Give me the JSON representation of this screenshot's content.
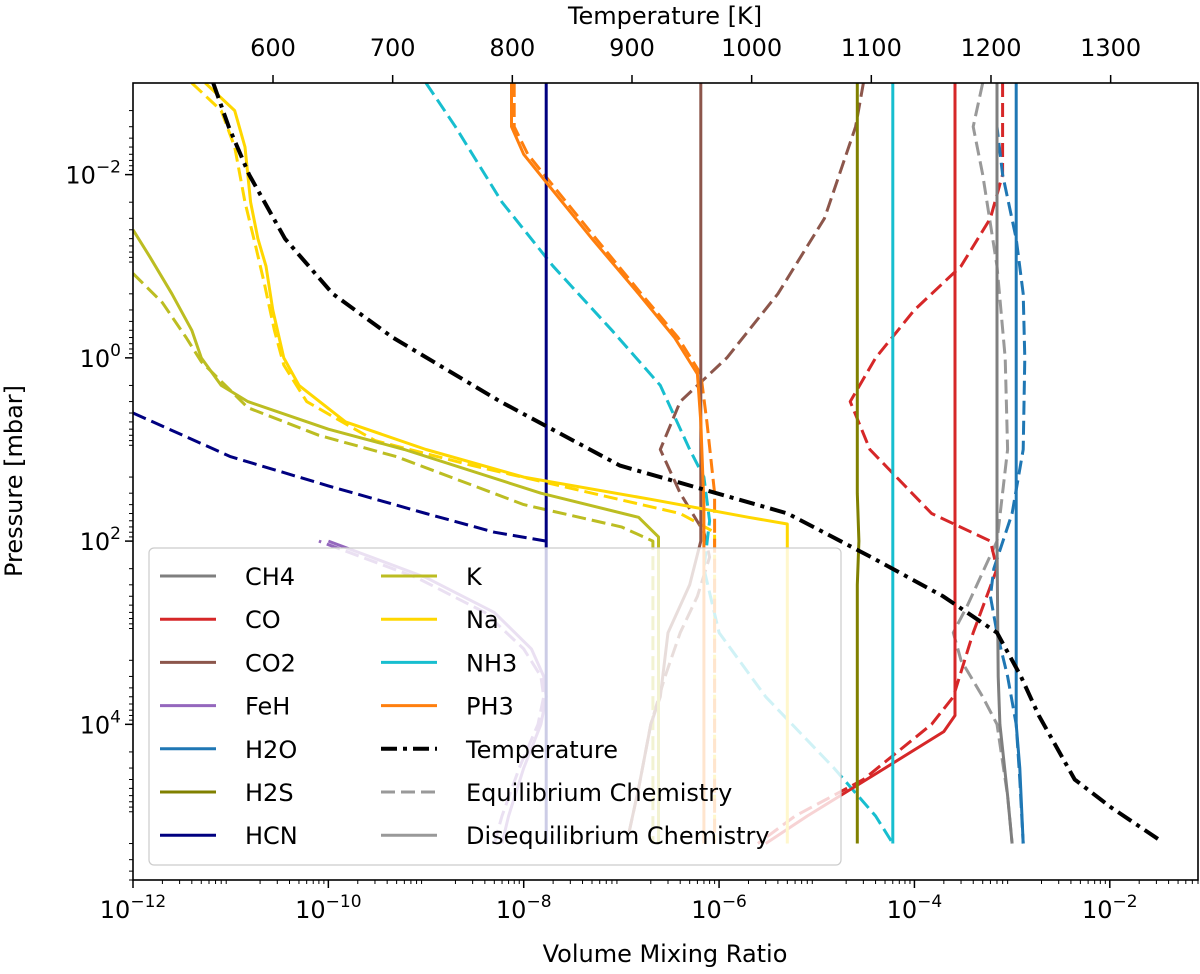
{
  "chart_data": {
    "type": "line",
    "xlabel": "Volume Mixing Ratio",
    "ylabel": "Pressure [mbar]",
    "top_xlabel": "Temperature [K]",
    "x_scale": "log",
    "y_scale": "log",
    "xlim": [
      1e-12,
      0.08
    ],
    "ylim": [
      500000.0,
      0.001
    ],
    "top_xlim": [
      483,
      1373
    ],
    "x_ticks": [
      {
        "value": 1e-12,
        "base": "10",
        "exp": "−12"
      },
      {
        "value": 1e-10,
        "base": "10",
        "exp": "−10"
      },
      {
        "value": 1e-08,
        "base": "10",
        "exp": "−8"
      },
      {
        "value": 1e-06,
        "base": "10",
        "exp": "−6"
      },
      {
        "value": 0.0001,
        "base": "10",
        "exp": "−4"
      },
      {
        "value": 0.01,
        "base": "10",
        "exp": "−2"
      }
    ],
    "y_ticks": [
      {
        "value": 0.01,
        "base": "10",
        "exp": "−2"
      },
      {
        "value": 1,
        "base": "10",
        "exp": "0"
      },
      {
        "value": 100,
        "base": "10",
        "exp": "2"
      },
      {
        "value": 10000,
        "base": "10",
        "exp": "4"
      }
    ],
    "top_ticks": [
      "600",
      "700",
      "800",
      "900",
      "1000",
      "1100",
      "1200",
      "1300"
    ],
    "legend": {
      "placement": "lower-left",
      "entries": [
        {
          "label": "CH4",
          "color": "#7f7f7f",
          "style": "solid"
        },
        {
          "label": "CO",
          "color": "#d62728",
          "style": "solid"
        },
        {
          "label": "CO2",
          "color": "#8c564b",
          "style": "solid"
        },
        {
          "label": "FeH",
          "color": "#9467bd",
          "style": "solid"
        },
        {
          "label": "H2O",
          "color": "#1f77b4",
          "style": "solid"
        },
        {
          "label": "H2S",
          "color": "#808000",
          "style": "solid"
        },
        {
          "label": "HCN",
          "color": "#000080",
          "style": "solid"
        },
        {
          "label": "K",
          "color": "#bcbd22",
          "style": "solid"
        },
        {
          "label": "Na",
          "color": "#ffd700",
          "style": "solid"
        },
        {
          "label": "NH3",
          "color": "#17becf",
          "style": "solid"
        },
        {
          "label": "PH3",
          "color": "#ff7f0e",
          "style": "solid"
        },
        {
          "label": "Temperature",
          "color": "#000000",
          "style": "dashdot"
        },
        {
          "label": "Equilibrium Chemistry",
          "color": "#999999",
          "style": "dashed"
        },
        {
          "label": "Disequilibrium Chemistry",
          "color": "#999999",
          "style": "solid"
        }
      ]
    },
    "series": [
      {
        "name": "CH4",
        "color": "#7f7f7f",
        "kind": "diseq",
        "points": [
          [
            0.0007,
            0.001
          ],
          [
            0.0007,
            100
          ],
          [
            0.00072,
            3000
          ],
          [
            0.00075,
            10000
          ],
          [
            0.0009,
            60000
          ],
          [
            0.001,
            200000
          ]
        ]
      },
      {
        "name": "CH4",
        "color": "#999999",
        "kind": "eq",
        "points": [
          [
            0.0005,
            0.001
          ],
          [
            0.0004,
            0.003
          ],
          [
            0.0005,
            0.01
          ],
          [
            0.0007,
            0.1
          ],
          [
            0.00085,
            1
          ],
          [
            0.0009,
            10
          ],
          [
            0.0007,
            100
          ],
          [
            0.00035,
            500
          ],
          [
            0.00025,
            1000
          ],
          [
            0.0003,
            2000
          ],
          [
            0.0005,
            5000
          ],
          [
            0.0007,
            10000
          ],
          [
            0.0009,
            60000
          ],
          [
            0.001,
            200000
          ]
        ]
      },
      {
        "name": "CO",
        "color": "#d62728",
        "kind": "diseq",
        "points": [
          [
            0.00026,
            0.001
          ],
          [
            0.00026,
            8000
          ],
          [
            0.0002,
            12000
          ],
          [
            5e-05,
            30000
          ],
          [
            8e-06,
            100000
          ],
          [
            3e-06,
            200000
          ]
        ]
      },
      {
        "name": "CO",
        "color": "#d62728",
        "kind": "eq",
        "points": [
          [
            0.0008,
            0.001
          ],
          [
            0.0008,
            0.01
          ],
          [
            0.0006,
            0.03
          ],
          [
            0.0003,
            0.1
          ],
          [
            0.0001,
            0.3
          ],
          [
            4e-05,
            1
          ],
          [
            2.2e-05,
            3
          ],
          [
            3.5e-05,
            10
          ],
          [
            0.00015,
            50
          ],
          [
            0.0006,
            100
          ],
          [
            0.0007,
            200
          ],
          [
            0.0004,
            1000
          ],
          [
            0.00025,
            5000
          ],
          [
            0.00015,
            10000
          ],
          [
            3e-05,
            40000
          ],
          [
            6e-06,
            100000
          ],
          [
            2.5e-06,
            200000
          ]
        ]
      },
      {
        "name": "CO2",
        "color": "#8c564b",
        "kind": "diseq",
        "points": [
          [
            6.5e-07,
            0.001
          ],
          [
            6.5e-07,
            100
          ],
          [
            5e-07,
            300
          ],
          [
            3e-07,
            1000
          ],
          [
            2.5e-07,
            5000
          ],
          [
            2e-07,
            10000
          ],
          [
            1.5e-07,
            50000
          ],
          [
            1.2e-07,
            150000
          ]
        ]
      },
      {
        "name": "CO2",
        "color": "#8c564b",
        "kind": "eq",
        "points": [
          [
            3e-05,
            0.001
          ],
          [
            2.5e-05,
            0.003
          ],
          [
            1.2e-05,
            0.03
          ],
          [
            4e-06,
            0.2
          ],
          [
            1.2e-06,
            1
          ],
          [
            4e-07,
            3
          ],
          [
            2.5e-07,
            10
          ],
          [
            4e-07,
            30
          ],
          [
            7e-07,
            80
          ],
          [
            8e-07,
            150
          ],
          [
            6e-07,
            400
          ],
          [
            4e-07,
            1000
          ],
          [
            2.8e-07,
            3000
          ],
          [
            2e-07,
            10000
          ],
          [
            1.5e-07,
            50000
          ],
          [
            1.2e-07,
            150000
          ]
        ]
      },
      {
        "name": "FeH",
        "color": "#9467bd",
        "kind": "diseq",
        "points": [
          [
            6e-09,
            200000
          ],
          [
            7e-09,
            100000
          ],
          [
            1e-08,
            30000
          ],
          [
            1.5e-08,
            10000
          ],
          [
            1.7e-08,
            5000
          ],
          [
            1.6e-08,
            3000
          ],
          [
            1.2e-08,
            1500
          ],
          [
            5e-09,
            600
          ],
          [
            1e-09,
            250
          ],
          [
            1e-10,
            100
          ]
        ]
      },
      {
        "name": "FeH",
        "color": "#9467bd",
        "kind": "eq",
        "points": [
          [
            5e-09,
            200000
          ],
          [
            6e-09,
            100000
          ],
          [
            9e-09,
            30000
          ],
          [
            1.4e-08,
            10000
          ],
          [
            1.6e-08,
            5000
          ],
          [
            1.5e-08,
            3000
          ],
          [
            1e-08,
            1500
          ],
          [
            4e-09,
            600
          ],
          [
            8e-10,
            250
          ],
          [
            8e-11,
            100
          ]
        ]
      },
      {
        "name": "H2O",
        "color": "#1f77b4",
        "kind": "diseq",
        "points": [
          [
            0.0011,
            0.001
          ],
          [
            0.0011,
            10000
          ],
          [
            0.0012,
            30000
          ],
          [
            0.0013,
            200000
          ]
        ]
      },
      {
        "name": "H2O",
        "color": "#1f77b4",
        "kind": "eq",
        "points": [
          [
            0.0007,
            0.001
          ],
          [
            0.0007,
            0.003
          ],
          [
            0.0008,
            0.01
          ],
          [
            0.0011,
            0.05
          ],
          [
            0.0013,
            0.2
          ],
          [
            0.00135,
            1
          ],
          [
            0.0013,
            10
          ],
          [
            0.001,
            50
          ],
          [
            0.00065,
            200
          ],
          [
            0.0006,
            400
          ],
          [
            0.0007,
            1000
          ],
          [
            0.0009,
            3000
          ],
          [
            0.0011,
            10000
          ],
          [
            0.0012,
            40000
          ],
          [
            0.0013,
            200000
          ]
        ]
      },
      {
        "name": "H2S",
        "color": "#808000",
        "kind": "diseq",
        "points": [
          [
            2.6e-05,
            0.001
          ],
          [
            2.6e-05,
            30
          ],
          [
            2.7e-05,
            100
          ],
          [
            2.6e-05,
            300
          ],
          [
            2.6e-05,
            200000
          ]
        ]
      },
      {
        "name": "HCN",
        "color": "#000080",
        "kind": "diseq",
        "points": [
          [
            1.7e-08,
            0.001
          ],
          [
            1.7e-08,
            200000
          ]
        ]
      },
      {
        "name": "HCN",
        "color": "#000080",
        "kind": "eq",
        "points": [
          [
            1e-12,
            4
          ],
          [
            1e-11,
            12
          ],
          [
            1e-10,
            25
          ],
          [
            1e-09,
            50
          ],
          [
            5e-09,
            80
          ],
          [
            1.7e-08,
            100
          ]
        ]
      },
      {
        "name": "K",
        "color": "#bcbd22",
        "kind": "diseq",
        "points": [
          [
            1e-12,
            0.04
          ],
          [
            1.5e-12,
            0.08
          ],
          [
            2.5e-12,
            0.2
          ],
          [
            4e-12,
            0.5
          ],
          [
            5e-12,
            1
          ],
          [
            8e-12,
            2
          ],
          [
            1.5e-11,
            3
          ],
          [
            1e-10,
            6
          ],
          [
            6e-10,
            10
          ],
          [
            1.5e-08,
            30
          ],
          [
            1.5e-07,
            55
          ],
          [
            2.4e-07,
            90
          ],
          [
            2.4e-07,
            200000
          ]
        ]
      },
      {
        "name": "K",
        "color": "#bcbd22",
        "kind": "eq",
        "points": [
          [
            1e-12,
            0.12
          ],
          [
            2e-12,
            0.25
          ],
          [
            3.5e-12,
            0.6
          ],
          [
            5e-12,
            1.1
          ],
          [
            1.5e-11,
            3.5
          ],
          [
            8e-11,
            7
          ],
          [
            5e-10,
            12
          ],
          [
            1e-08,
            40
          ],
          [
            1e-07,
            70
          ],
          [
            2.1e-07,
            100
          ],
          [
            2.1e-07,
            200000
          ]
        ]
      },
      {
        "name": "Na",
        "color": "#ffd700",
        "kind": "diseq",
        "points": [
          [
            5.5e-12,
            0.001
          ],
          [
            1.1e-11,
            0.002
          ],
          [
            1.4e-11,
            0.005
          ],
          [
            1.6e-11,
            0.02
          ],
          [
            1.9e-11,
            0.05
          ],
          [
            2.3e-11,
            0.1
          ],
          [
            2.7e-11,
            0.3
          ],
          [
            3.5e-11,
            1
          ],
          [
            5e-11,
            2
          ],
          [
            1.5e-10,
            5
          ],
          [
            1e-09,
            10
          ],
          [
            1e-08,
            20
          ],
          [
            2e-07,
            35
          ],
          [
            2e-06,
            55
          ],
          [
            5e-06,
            65
          ],
          [
            5e-06,
            200000
          ]
        ]
      },
      {
        "name": "Na",
        "color": "#ffd700",
        "kind": "eq",
        "points": [
          [
            4e-12,
            0.001
          ],
          [
            8e-12,
            0.002
          ],
          [
            1.1e-11,
            0.005
          ],
          [
            1.4e-11,
            0.02
          ],
          [
            1.8e-11,
            0.06
          ],
          [
            2.2e-11,
            0.15
          ],
          [
            2.8e-11,
            0.5
          ],
          [
            3.5e-11,
            1.2
          ],
          [
            6e-11,
            3
          ],
          [
            3e-10,
            8
          ],
          [
            3e-09,
            15
          ],
          [
            5e-08,
            30
          ],
          [
            4e-07,
            50
          ],
          [
            9e-07,
            80
          ],
          [
            9e-07,
            200000
          ]
        ]
      },
      {
        "name": "NH3",
        "color": "#17becf",
        "kind": "diseq",
        "points": [
          [
            6e-05,
            0.001
          ],
          [
            6e-05,
            100
          ],
          [
            6e-05,
            200000
          ]
        ]
      },
      {
        "name": "NH3",
        "color": "#17becf",
        "kind": "eq",
        "points": [
          [
            1e-09,
            0.001
          ],
          [
            2e-09,
            0.003
          ],
          [
            6e-09,
            0.02
          ],
          [
            2e-08,
            0.1
          ],
          [
            8e-08,
            0.5
          ],
          [
            2.5e-07,
            2
          ],
          [
            5e-07,
            10
          ],
          [
            7e-07,
            20
          ],
          [
            8e-07,
            60
          ],
          [
            7e-07,
            200
          ],
          [
            1e-06,
            1000
          ],
          [
            3e-06,
            5000
          ],
          [
            1.5e-05,
            30000
          ],
          [
            4e-05,
            100000
          ],
          [
            6e-05,
            200000
          ]
        ]
      },
      {
        "name": "PH3",
        "color": "#ff7f0e",
        "kind": "diseq",
        "points": [
          [
            7.5e-09,
            0.001
          ],
          [
            7.5e-09,
            0.003
          ],
          [
            1e-08,
            0.006
          ],
          [
            2e-08,
            0.015
          ],
          [
            5e-08,
            0.05
          ],
          [
            1.5e-07,
            0.2
          ],
          [
            3.5e-07,
            0.6
          ],
          [
            6e-07,
            1.5
          ],
          [
            6.5e-07,
            5
          ],
          [
            7e-07,
            40
          ],
          [
            7e-07,
            200000
          ]
        ]
      },
      {
        "name": "PH3",
        "color": "#ff7f0e",
        "kind": "eq",
        "points": [
          [
            8e-09,
            0.001
          ],
          [
            8e-09,
            0.003
          ],
          [
            1.1e-08,
            0.006
          ],
          [
            2.2e-08,
            0.015
          ],
          [
            5.5e-08,
            0.05
          ],
          [
            1.6e-07,
            0.2
          ],
          [
            3.8e-07,
            0.6
          ],
          [
            6.5e-07,
            1.5
          ],
          [
            7.5e-07,
            5
          ],
          [
            9e-07,
            30
          ],
          [
            9e-07,
            200000
          ]
        ]
      },
      {
        "name": "Temperature",
        "color": "#000000",
        "kind": "temperature",
        "temp_points": [
          [
            550,
            0.001
          ],
          [
            563,
            0.003
          ],
          [
            580,
            0.01
          ],
          [
            610,
            0.05
          ],
          [
            650,
            0.2
          ],
          [
            700,
            0.6
          ],
          [
            790,
            3
          ],
          [
            890,
            15
          ],
          [
            1030,
            50
          ],
          [
            1100,
            150
          ],
          [
            1160,
            400
          ],
          [
            1205,
            1000
          ],
          [
            1225,
            3000
          ],
          [
            1240,
            8000
          ],
          [
            1270,
            40000
          ],
          [
            1300,
            80000
          ],
          [
            1340,
            180000
          ]
        ]
      }
    ]
  }
}
